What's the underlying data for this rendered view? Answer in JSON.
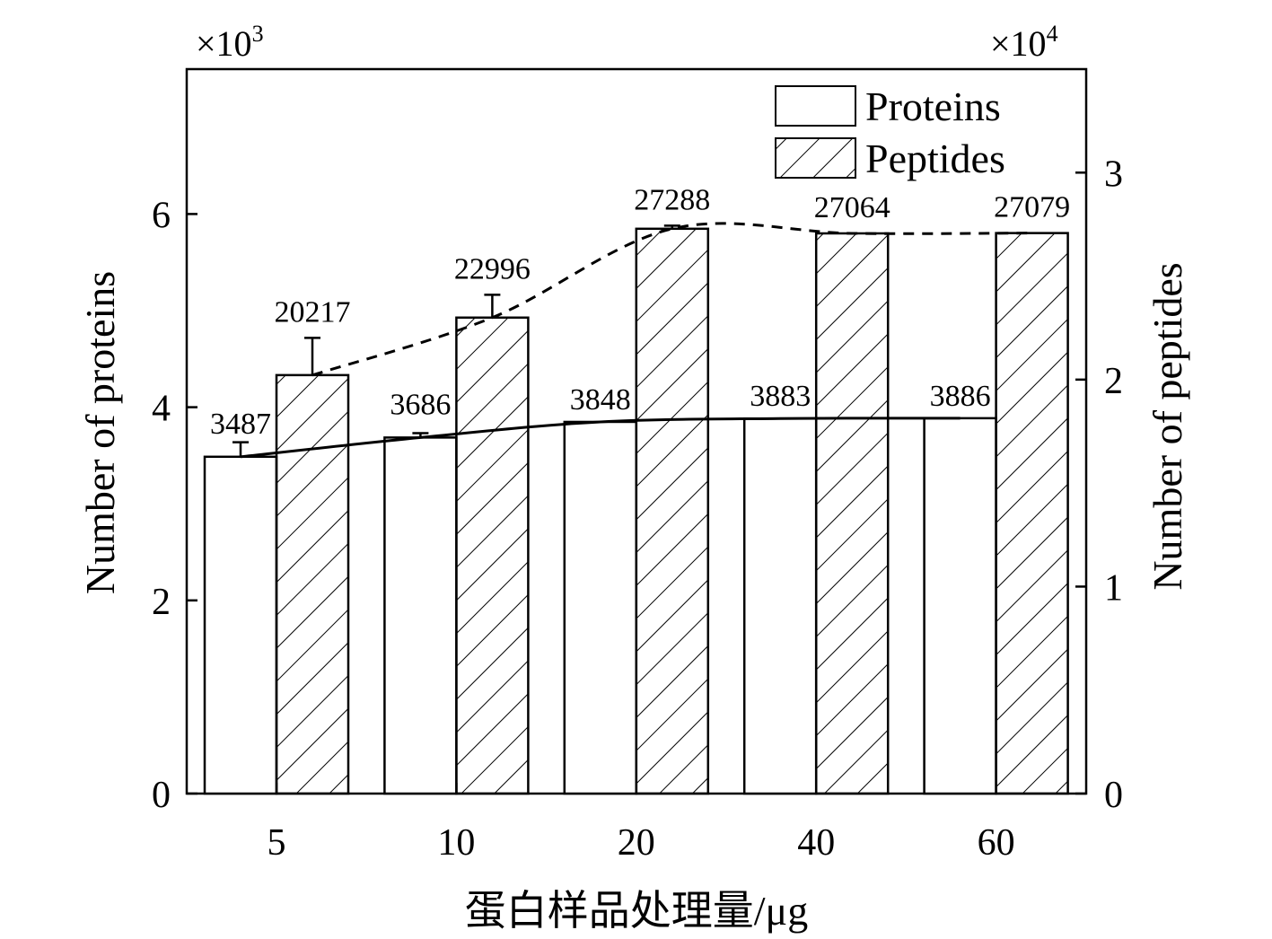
{
  "chart_data": {
    "type": "bar",
    "categories": [
      "5",
      "10",
      "20",
      "40",
      "60"
    ],
    "xlabel": "蛋白样品处理量/μg",
    "ylabel_left": "Number of proteins",
    "ylabel_right": "Number of peptides",
    "left_multiplier": "×10",
    "left_multiplier_exp": "3",
    "right_multiplier": "×10",
    "right_multiplier_exp": "4",
    "ylim_left": [
      0,
      7.5
    ],
    "ylim_right": [
      0,
      3.5
    ],
    "left_ticks": [
      "0",
      "2",
      "4",
      "6"
    ],
    "right_ticks": [
      "0",
      "1",
      "2",
      "3"
    ],
    "legend_position": "top-right",
    "series": [
      {
        "name": "Proteins",
        "axis": "left",
        "fill": "white",
        "values": [
          3487,
          3686,
          3848,
          3883,
          3886
        ],
        "labels": [
          "3487",
          "3686",
          "3848",
          "3883",
          "3886"
        ],
        "error": [
          150,
          45,
          0,
          0,
          0
        ],
        "trend_line": "solid"
      },
      {
        "name": "Peptides",
        "axis": "right",
        "fill": "hatched",
        "values": [
          20217,
          22996,
          27288,
          27064,
          27079
        ],
        "labels": [
          "20217",
          "22996",
          "27288",
          "27064",
          "27079"
        ],
        "error": [
          1800,
          1100,
          150,
          0,
          0
        ],
        "trend_line": "dashed"
      }
    ]
  }
}
